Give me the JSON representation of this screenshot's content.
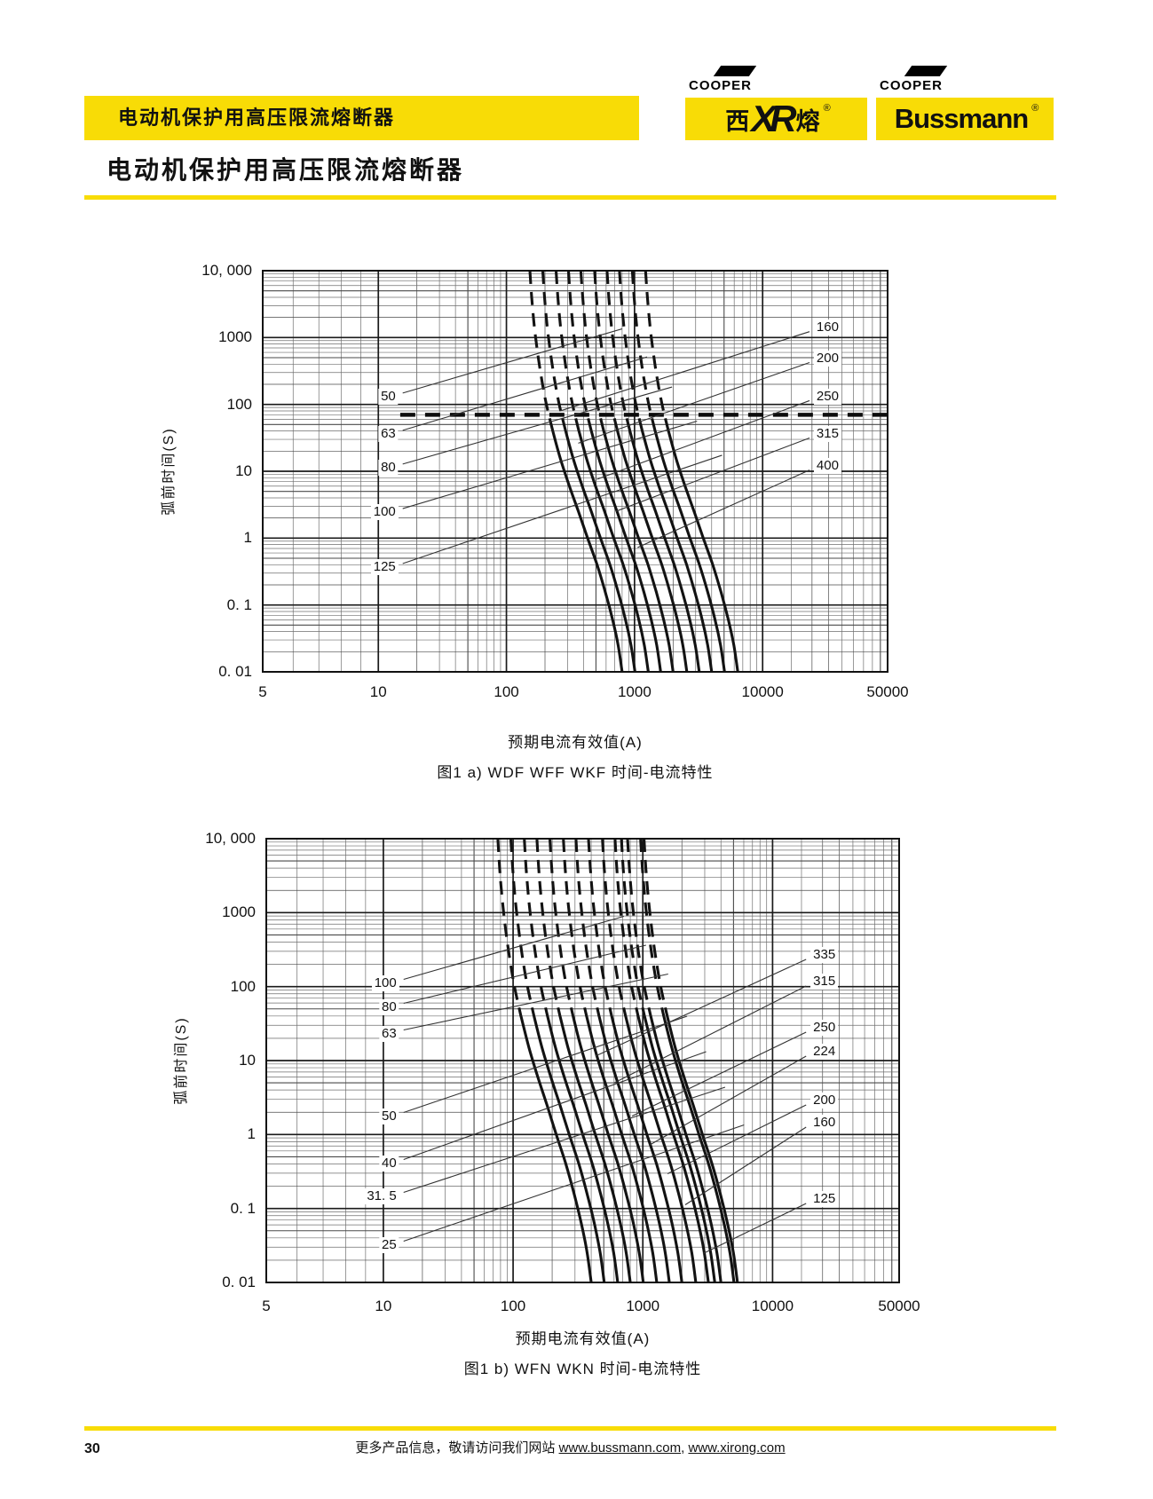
{
  "header": {
    "band_title": "电动机保护用高压限流熔断器",
    "page_title": "电动机保护用高压限流熔断器",
    "logo1": {
      "cooper": "COOPER",
      "xi": "西",
      "xr": "XR",
      "rong": "熔",
      "reg": "®"
    },
    "logo2": {
      "cooper": "COOPER",
      "name": "Bussmann",
      "reg": "®"
    },
    "accent_color": "#f8dc06"
  },
  "chart_data": [
    {
      "id": "fig1a",
      "type": "line",
      "title": "图1 a) WDF WFF WKF 时间-电流特性",
      "x_axis_label": "预期电流有效值(A)",
      "y_axis_label": "弧前时间(S)",
      "x_range": [
        5,
        50000
      ],
      "y_range": [
        0.01,
        10000
      ],
      "grid": true,
      "legend_position": "inline-labels",
      "x_ticks": [
        {
          "label": "5",
          "value": 5,
          "f": 0
        },
        {
          "label": "10",
          "value": 10,
          "f": 0.185
        },
        {
          "label": "100",
          "value": 100,
          "f": 0.39
        },
        {
          "label": "1000",
          "value": 1000,
          "f": 0.595
        },
        {
          "label": "10000",
          "value": 10000,
          "f": 0.8
        },
        {
          "label": "50000",
          "value": 50000,
          "f": 1.0
        }
      ],
      "y_ticks": [
        {
          "label": "10, 000",
          "value": 10000
        },
        {
          "label": "1000",
          "value": 1000
        },
        {
          "label": "100",
          "value": 100
        },
        {
          "label": "10",
          "value": 10
        },
        {
          "label": "1",
          "value": 1
        },
        {
          "label": "0. 1",
          "value": 0.1
        },
        {
          "label": "0. 01",
          "value": 0.01
        }
      ],
      "ratings_A": [
        50,
        63,
        80,
        100,
        125,
        160,
        200,
        250,
        315,
        400
      ],
      "curve_times_s": [
        10000,
        4000,
        1500,
        600,
        250,
        100,
        40,
        15,
        6,
        2.5,
        1,
        0.4,
        0.15,
        0.06,
        0.025,
        0.01
      ],
      "curve_current_multipliers": [
        3.05,
        3.15,
        3.3,
        3.5,
        3.75,
        4.1,
        4.6,
        5.3,
        6.2,
        7.3,
        8.6,
        10.2,
        11.9,
        13.5,
        14.9,
        16.0
      ],
      "dash_line": {
        "time_s": 70,
        "from_f": 0.22,
        "to_f": 1.0
      },
      "labels": [
        {
          "text": "50",
          "side": "left",
          "fx": 0.217,
          "fy": 0.314,
          "leader": [
            0.224,
            0.305,
            0.575,
            0.145
          ]
        },
        {
          "text": "63",
          "side": "left",
          "fx": 0.217,
          "fy": 0.407,
          "leader": [
            0.224,
            0.398,
            0.615,
            0.215
          ]
        },
        {
          "text": "80",
          "side": "left",
          "fx": 0.217,
          "fy": 0.491,
          "leader": [
            0.224,
            0.482,
            0.655,
            0.29
          ]
        },
        {
          "text": "100",
          "side": "left",
          "fx": 0.217,
          "fy": 0.602,
          "leader": [
            0.224,
            0.593,
            0.695,
            0.375
          ]
        },
        {
          "text": "125",
          "side": "left",
          "fx": 0.217,
          "fy": 0.739,
          "leader": [
            0.224,
            0.73,
            0.735,
            0.46
          ]
        },
        {
          "text": "160",
          "side": "right",
          "fx": 0.882,
          "fy": 0.142,
          "leader": [
            0.875,
            0.152,
            0.475,
            0.35
          ]
        },
        {
          "text": "200",
          "side": "right",
          "fx": 0.882,
          "fy": 0.219,
          "leader": [
            0.875,
            0.229,
            0.505,
            0.43
          ]
        },
        {
          "text": "250",
          "side": "right",
          "fx": 0.882,
          "fy": 0.314,
          "leader": [
            0.875,
            0.324,
            0.535,
            0.52
          ]
        },
        {
          "text": "315",
          "side": "right",
          "fx": 0.882,
          "fy": 0.407,
          "leader": [
            0.875,
            0.417,
            0.565,
            0.6
          ]
        },
        {
          "text": "400",
          "side": "right",
          "fx": 0.882,
          "fy": 0.487,
          "leader": [
            0.875,
            0.497,
            0.6,
            0.69
          ]
        }
      ]
    },
    {
      "id": "fig1b",
      "type": "line",
      "title": "图1 b) WFN WKN 时间-电流特性",
      "x_axis_label": "预期电流有效值(A)",
      "y_axis_label": "弧前时间(S)",
      "x_range": [
        5,
        50000
      ],
      "y_range": [
        0.01,
        10000
      ],
      "grid": true,
      "legend_position": "inline-labels",
      "x_ticks": [
        {
          "label": "5",
          "value": 5,
          "f": 0
        },
        {
          "label": "10",
          "value": 10,
          "f": 0.185
        },
        {
          "label": "100",
          "value": 100,
          "f": 0.39
        },
        {
          "label": "1000",
          "value": 1000,
          "f": 0.595
        },
        {
          "label": "10000",
          "value": 10000,
          "f": 0.8
        },
        {
          "label": "50000",
          "value": 50000,
          "f": 1.0
        }
      ],
      "y_ticks": [
        {
          "label": "10, 000",
          "value": 10000
        },
        {
          "label": "1000",
          "value": 1000
        },
        {
          "label": "100",
          "value": 100
        },
        {
          "label": "10",
          "value": 10
        },
        {
          "label": "1",
          "value": 1
        },
        {
          "label": "0. 1",
          "value": 0.1
        },
        {
          "label": "0. 01",
          "value": 0.01
        }
      ],
      "ratings_A": [
        25,
        31.5,
        40,
        50,
        63,
        80,
        100,
        125,
        160,
        200,
        224,
        250,
        315,
        335
      ],
      "curve_times_s": [
        10000,
        4000,
        1500,
        600,
        250,
        100,
        40,
        15,
        6,
        2.5,
        1,
        0.4,
        0.15,
        0.06,
        0.025,
        0.01
      ],
      "curve_current_multipliers": [
        3.05,
        3.15,
        3.3,
        3.5,
        3.75,
        4.1,
        4.6,
        5.3,
        6.2,
        7.3,
        8.6,
        10.2,
        11.9,
        13.5,
        14.9,
        16.0
      ],
      "dash_line": null,
      "labels": [
        {
          "text": "100",
          "side": "left",
          "fx": 0.21,
          "fy": 0.326,
          "leader": [
            0.217,
            0.317,
            0.565,
            0.175
          ]
        },
        {
          "text": "80",
          "side": "left",
          "fx": 0.21,
          "fy": 0.38,
          "leader": [
            0.217,
            0.371,
            0.6,
            0.24
          ]
        },
        {
          "text": "63",
          "side": "left",
          "fx": 0.21,
          "fy": 0.44,
          "leader": [
            0.217,
            0.431,
            0.635,
            0.305
          ]
        },
        {
          "text": "50",
          "side": "left",
          "fx": 0.21,
          "fy": 0.626,
          "leader": [
            0.217,
            0.617,
            0.665,
            0.4
          ]
        },
        {
          "text": "40",
          "side": "left",
          "fx": 0.21,
          "fy": 0.732,
          "leader": [
            0.217,
            0.723,
            0.695,
            0.48
          ]
        },
        {
          "text": "31. 5",
          "side": "left",
          "fx": 0.21,
          "fy": 0.806,
          "leader": [
            0.217,
            0.797,
            0.725,
            0.56
          ]
        },
        {
          "text": "25",
          "side": "left",
          "fx": 0.21,
          "fy": 0.916,
          "leader": [
            0.217,
            0.907,
            0.755,
            0.645
          ]
        },
        {
          "text": "335",
          "side": "right",
          "fx": 0.86,
          "fy": 0.262,
          "leader": [
            0.853,
            0.272,
            0.52,
            0.49
          ]
        },
        {
          "text": "315",
          "side": "right",
          "fx": 0.86,
          "fy": 0.322,
          "leader": [
            0.853,
            0.332,
            0.55,
            0.55
          ]
        },
        {
          "text": "250",
          "side": "right",
          "fx": 0.86,
          "fy": 0.426,
          "leader": [
            0.853,
            0.436,
            0.578,
            0.625
          ]
        },
        {
          "text": "224",
          "side": "right",
          "fx": 0.86,
          "fy": 0.48,
          "leader": [
            0.853,
            0.49,
            0.606,
            0.69
          ]
        },
        {
          "text": "200",
          "side": "right",
          "fx": 0.86,
          "fy": 0.59,
          "leader": [
            0.853,
            0.6,
            0.634,
            0.755
          ]
        },
        {
          "text": "160",
          "side": "right",
          "fx": 0.86,
          "fy": 0.64,
          "leader": [
            0.853,
            0.65,
            0.662,
            0.825
          ]
        },
        {
          "text": "125",
          "side": "right",
          "fx": 0.86,
          "fy": 0.812,
          "leader": [
            0.853,
            0.822,
            0.69,
            0.935
          ]
        }
      ]
    }
  ],
  "footer": {
    "page_number": "30",
    "note_prefix": "更多产品信息，敬请访问我们网站 ",
    "link1": "www.bussmann.com",
    "separator": ", ",
    "link2": "www.xirong.com"
  }
}
